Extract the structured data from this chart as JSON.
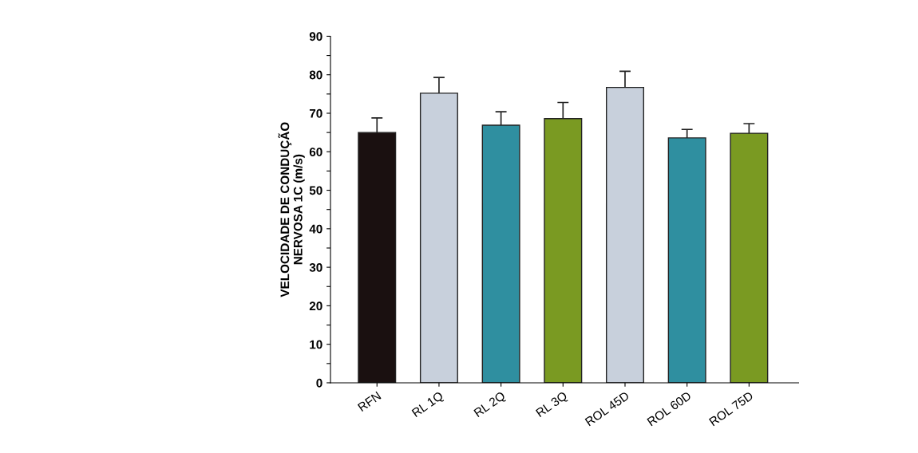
{
  "chart_data": {
    "type": "bar",
    "ylabel": "VELOCIDADE DE CONDUÇÃO\nNERVOSA 1C (m/s)",
    "categories": [
      "RFN",
      "RL 1Q",
      "RL 2Q",
      "RL 3Q",
      "ROL 45D",
      "ROL 60D",
      "ROL 75D"
    ],
    "values": [
      65.0,
      75.2,
      66.9,
      68.6,
      76.7,
      63.6,
      64.8
    ],
    "errors": [
      3.8,
      4.1,
      3.5,
      4.2,
      4.2,
      2.2,
      2.5
    ],
    "colors": [
      "#1a1010",
      "#c8d0dc",
      "#2f8fa0",
      "#7a9a22",
      "#c8d0dc",
      "#2f8fa0",
      "#7a9a22"
    ],
    "ylim": [
      0,
      90
    ],
    "yticks": [
      0,
      {
        "value": 5,
        "label": null
      },
      10,
      {
        "value": 15,
        "label": null
      },
      20,
      {
        "value": 25,
        "label": null
      },
      30,
      {
        "value": 35,
        "label": null
      },
      40,
      {
        "value": 45,
        "label": null
      },
      50,
      {
        "value": 55,
        "label": null
      },
      60,
      {
        "value": 65,
        "label": null
      },
      70,
      {
        "value": 75,
        "label": null
      },
      80,
      {
        "value": 85,
        "label": null
      },
      90
    ],
    "grid": false,
    "legend": false
  }
}
